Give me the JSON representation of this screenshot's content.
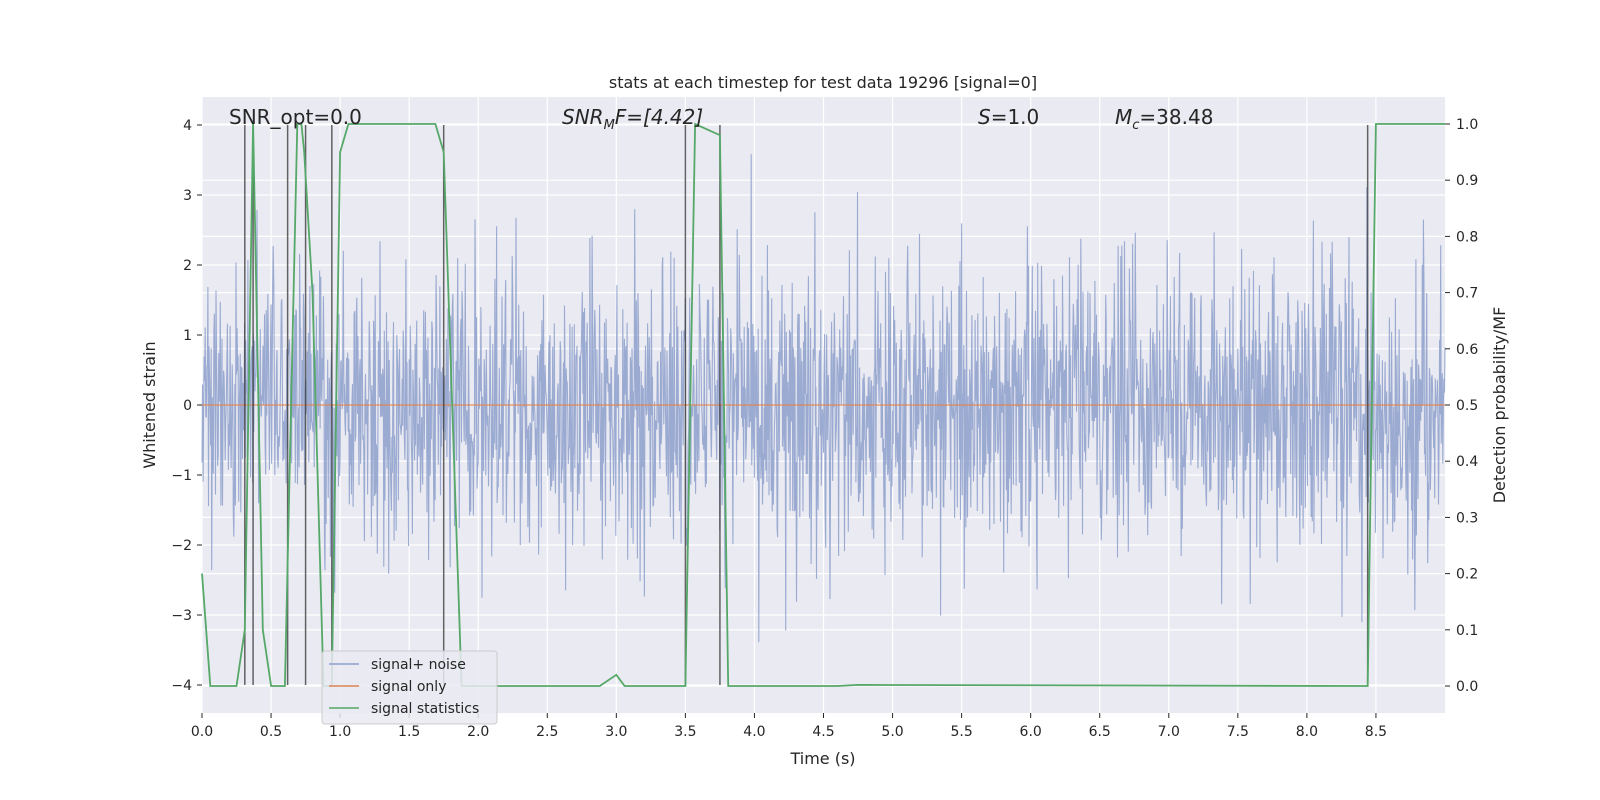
{
  "chart_data": {
    "type": "line",
    "title": "stats at each timestep for test data 19296 [signal=0]",
    "xlabel": "Time (s)",
    "ylabel": "Whitened strain",
    "ylabel_right": "Detection probability/MF",
    "xlim": [
      0.0,
      9.0
    ],
    "ylim": [
      -4.4,
      4.4
    ],
    "ylim_right": [
      -0.048,
      1.048
    ],
    "xticks": [
      0.0,
      0.5,
      1.0,
      1.5,
      2.0,
      2.5,
      3.0,
      3.5,
      4.0,
      4.5,
      5.0,
      5.5,
      6.0,
      6.5,
      7.0,
      7.5,
      8.0,
      8.5
    ],
    "xtick_labels": [
      "0.0",
      "0.5",
      "1.0",
      "1.5",
      "2.0",
      "2.5",
      "3.0",
      "3.5",
      "4.0",
      "4.5",
      "5.0",
      "5.5",
      "6.0",
      "6.5",
      "7.0",
      "7.5",
      "8.0",
      "8.5"
    ],
    "yticks": [
      -4,
      -3,
      -2,
      -1,
      0,
      1,
      2,
      3,
      4
    ],
    "ytick_labels": [
      "−4",
      "−3",
      "−2",
      "−1",
      "0",
      "1",
      "2",
      "3",
      "4"
    ],
    "yticks_right": [
      0.0,
      0.1,
      0.2,
      0.3,
      0.4,
      0.5,
      0.6,
      0.7,
      0.8,
      0.9,
      1.0
    ],
    "ytick_labels_right": [
      "0.0",
      "0.1",
      "0.2",
      "0.3",
      "0.4",
      "0.5",
      "0.6",
      "0.7",
      "0.8",
      "0.9",
      "1.0"
    ],
    "grid": true,
    "legend_position": "bottom-left",
    "legend": [
      "signal+ noise",
      "signal only",
      "signal statistics"
    ],
    "colors": {
      "signal_noise": "#8c9fcb",
      "signal_only": "#dd8452",
      "statistics": "#55a868",
      "markers": "#333333",
      "background": "#eaeaf2",
      "grid": "#ffffff"
    },
    "annotations": {
      "snr_opt": "SNR_opt=0.0",
      "snr_mf_label": "SNR",
      "snr_mf_sub": "M",
      "snr_mf_tail": "F=[4.42]",
      "s_label": "S",
      "s_value": "=1.0",
      "mc_label": "M",
      "mc_sub": "c",
      "mc_value": "=38.48"
    },
    "noise": {
      "dt": 0.00390625,
      "sigma": 1.0,
      "seed": 19296
    },
    "signal_only": {
      "value": 0.0
    },
    "statistics": {
      "x": [
        0.0,
        0.06,
        0.25,
        0.31,
        0.37,
        0.44,
        0.5,
        0.6,
        0.69,
        0.72,
        0.74,
        0.8,
        0.88,
        0.94,
        1.0,
        1.06,
        1.69,
        1.75,
        1.88,
        2.88,
        3.0,
        3.06,
        3.5,
        3.57,
        3.75,
        3.81,
        4.6,
        4.75,
        8.44,
        8.5,
        9.0
      ],
      "y": [
        0.2,
        0.0,
        0.0,
        0.1,
        1.0,
        0.1,
        0.0,
        0.0,
        1.0,
        1.0,
        0.95,
        0.7,
        0.0,
        0.0,
        0.95,
        1.0,
        1.0,
        0.95,
        0.0,
        0.0,
        0.02,
        0.0,
        0.0,
        1.0,
        0.98,
        0.0,
        0.0,
        0.002,
        0.0,
        1.0,
        1.0
      ]
    },
    "markers_x": [
      0.31,
      0.37,
      0.62,
      0.75,
      0.94,
      1.75,
      3.5,
      3.75,
      8.44
    ],
    "markers_y": [
      -4.0,
      4.0
    ]
  }
}
